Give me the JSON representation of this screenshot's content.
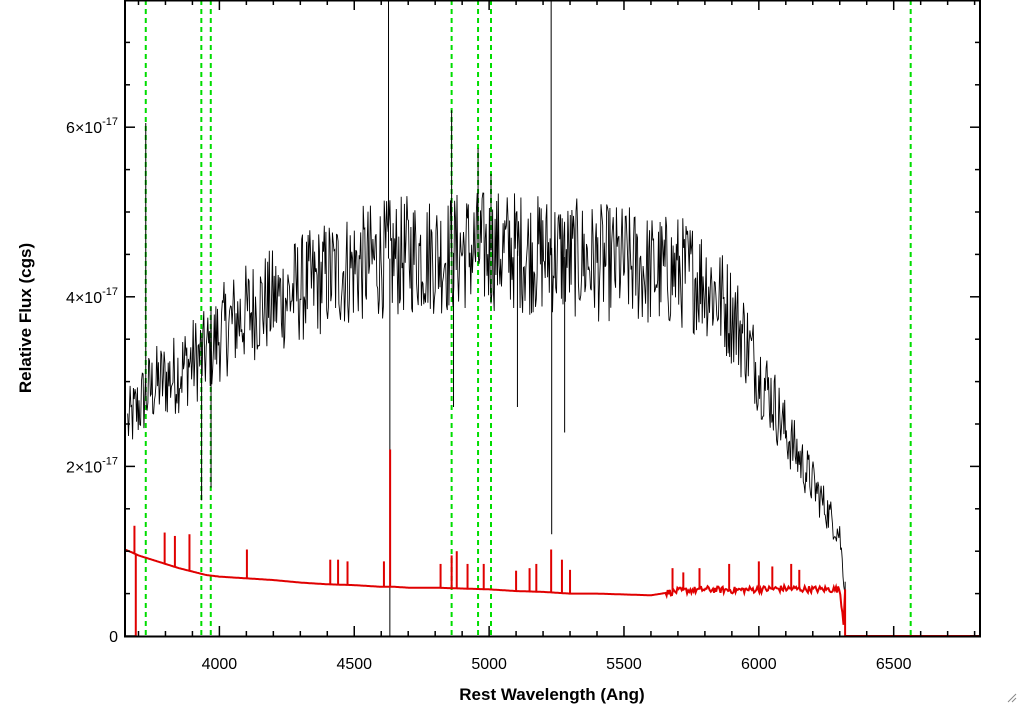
{
  "chart_data": {
    "type": "line",
    "title": "",
    "xlabel": "Rest Wavelength (Ang)",
    "ylabel": "Relative Flux (cgs)",
    "xlim": [
      3650,
      6820
    ],
    "ylim": [
      0,
      7.5e-17
    ],
    "xticks": [
      4000,
      4500,
      5000,
      5500,
      6000,
      6500
    ],
    "xtick_labels": [
      "4000",
      "4500",
      "5000",
      "5500",
      "6000",
      "6500"
    ],
    "yticks": [
      0,
      2e-17,
      4e-17,
      6e-17
    ],
    "ytick_labels": [
      {
        "mantissa": "0",
        "base": "",
        "exponent": ""
      },
      {
        "mantissa": "2",
        "base": "10",
        "exponent": "-17"
      },
      {
        "mantissa": "4",
        "base": "10",
        "exponent": "-17"
      },
      {
        "mantissa": "6",
        "base": "10",
        "exponent": "-17"
      }
    ],
    "grid": false,
    "legend": "none",
    "colors": {
      "spectrum": "#000000",
      "model": "#e00000",
      "lines": "#00dd00",
      "axes": "#000000"
    },
    "series": [
      {
        "style": "black-noisy",
        "x": [
          3660,
          3700,
          3740,
          3780,
          3820,
          3860,
          3900,
          3940,
          3980,
          4000,
          4050,
          4100,
          4150,
          4200,
          4250,
          4300,
          4350,
          4400,
          4450,
          4500,
          4550,
          4600,
          4650,
          4700,
          4750,
          4800,
          4850,
          4900,
          4950,
          5000,
          5050,
          5100,
          5150,
          5200,
          5250,
          5300,
          5350,
          5400,
          5450,
          5500,
          5550,
          5600,
          5650,
          5700,
          5750,
          5800,
          5850,
          5900,
          5950,
          6000,
          6050,
          6100,
          6150,
          6200,
          6250,
          6300,
          6320
        ],
        "y": [
          2.5e-17,
          2.7e-17,
          2.9e-17,
          3e-17,
          3.05e-17,
          3.15e-17,
          3.25e-17,
          3.3e-17,
          3.45e-17,
          3.55e-17,
          3.7e-17,
          3.8e-17,
          3.9e-17,
          3.95e-17,
          4e-17,
          4.1e-17,
          4.15e-17,
          4.25e-17,
          4.3e-17,
          4.35e-17,
          4.4e-17,
          4.45e-17,
          4.45e-17,
          4.5e-17,
          4.5e-17,
          4.5e-17,
          4.5e-17,
          4.55e-17,
          4.55e-17,
          4.55e-17,
          4.55e-17,
          4.55e-17,
          4.5e-17,
          4.5e-17,
          4.5e-17,
          4.45e-17,
          4.45e-17,
          4.4e-17,
          4.4e-17,
          4.4e-17,
          4.35e-17,
          4.3e-17,
          4.3e-17,
          4.3e-17,
          4.25e-17,
          4.2e-17,
          4e-17,
          3.8e-17,
          3.5e-17,
          3.1e-17,
          2.8e-17,
          2.4e-17,
          2.1e-17,
          1.8e-17,
          1.5e-17,
          1.2e-17,
          5e-18
        ],
        "spikes": [
          {
            "x": 3727,
            "y": 6.05e-17
          },
          {
            "x": 3934,
            "y": 1.6e-17
          },
          {
            "x": 3969,
            "y": 1.75e-17
          },
          {
            "x": 4627,
            "y": 7.5e-17
          },
          {
            "x": 4632,
            "y": 0
          },
          {
            "x": 4861,
            "y": 6.2e-17
          },
          {
            "x": 4868,
            "y": 2.7e-17
          },
          {
            "x": 4959,
            "y": 5.75e-17
          },
          {
            "x": 5007,
            "y": 5.45e-17
          },
          {
            "x": 5105,
            "y": 2.7e-17
          },
          {
            "x": 5230,
            "y": 7.5e-17
          },
          {
            "x": 5232,
            "y": 1.2e-17
          },
          {
            "x": 5280,
            "y": 2.4e-17
          }
        ]
      },
      {
        "style": "red-model",
        "x": [
          3650,
          3680,
          3700,
          3750,
          3800,
          3850,
          3900,
          3950,
          4000,
          4100,
          4200,
          4300,
          4400,
          4500,
          4600,
          4650,
          4700,
          4800,
          4900,
          5000,
          5100,
          5200,
          5300,
          5400,
          5500,
          5600,
          5700,
          5800,
          5900,
          6000,
          6100,
          6200,
          6300,
          6320,
          6820
        ],
        "y": [
          1.02e-17,
          9.8e-18,
          9.5e-18,
          9e-18,
          8.5e-18,
          8e-18,
          7.6e-18,
          7.2e-18,
          7e-18,
          6.8e-18,
          6.6e-18,
          6.3e-18,
          6.1e-18,
          6e-18,
          5.8e-18,
          5.8e-18,
          5.7e-18,
          5.7e-18,
          5.6e-18,
          5.5e-18,
          5.3e-18,
          5.2e-18,
          5e-18,
          5e-18,
          4.9e-18,
          4.8e-18,
          5.3e-18,
          5.5e-18,
          5.4e-18,
          5.5e-18,
          5.6e-18,
          5.5e-18,
          5.5e-18,
          0,
          0
        ],
        "dropout": {
          "x": 3690,
          "y": 0
        },
        "spikes": [
          {
            "x": 3685,
            "y": 1.3e-17
          },
          {
            "x": 3797,
            "y": 1.22e-17
          },
          {
            "x": 3835,
            "y": 1.18e-17
          },
          {
            "x": 3889,
            "y": 1.2e-17
          },
          {
            "x": 4102,
            "y": 1.02e-17
          },
          {
            "x": 4411,
            "y": 9e-18
          },
          {
            "x": 4440,
            "y": 9e-18
          },
          {
            "x": 4475,
            "y": 8.8e-18
          },
          {
            "x": 4610,
            "y": 8.8e-18
          },
          {
            "x": 4633,
            "y": 2.2e-17
          },
          {
            "x": 4820,
            "y": 8.5e-18
          },
          {
            "x": 4861,
            "y": 9.5e-18
          },
          {
            "x": 4880,
            "y": 1e-17
          },
          {
            "x": 4920,
            "y": 8.5e-18
          },
          {
            "x": 4980,
            "y": 8.5e-18
          },
          {
            "x": 5100,
            "y": 7.7e-18
          },
          {
            "x": 5150,
            "y": 8e-18
          },
          {
            "x": 5175,
            "y": 8.5e-18
          },
          {
            "x": 5230,
            "y": 1.02e-17
          },
          {
            "x": 5270,
            "y": 9e-18
          },
          {
            "x": 5300,
            "y": 7.8e-18
          },
          {
            "x": 5680,
            "y": 8e-18
          },
          {
            "x": 5720,
            "y": 7.5e-18
          },
          {
            "x": 5780,
            "y": 8e-18
          },
          {
            "x": 5890,
            "y": 8.5e-18
          },
          {
            "x": 6000,
            "y": 8.8e-18
          },
          {
            "x": 6050,
            "y": 8.2e-18
          },
          {
            "x": 6120,
            "y": 8.5e-18
          },
          {
            "x": 6150,
            "y": 7.8e-18
          }
        ]
      }
    ],
    "reference_lines": [
      3727,
      3933,
      3968,
      4861,
      4959,
      5007,
      6563
    ]
  }
}
